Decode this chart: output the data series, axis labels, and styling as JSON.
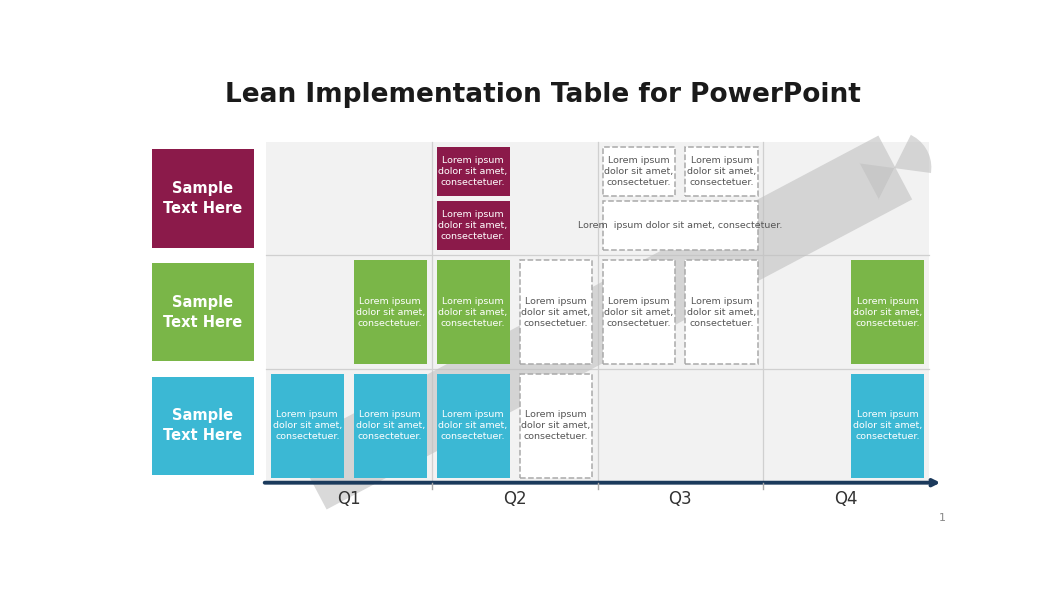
{
  "title": "Lean Implementation Table for PowerPoint",
  "title_fontsize": 19,
  "background_color": "#ffffff",
  "crimson": "#8B1A4A",
  "green": "#7AB648",
  "blue": "#3BB8D4",
  "axis_color": "#1B3A5C",
  "arrow_gray": "#c0c0c0",
  "grid_bg": "#f2f2f2",
  "grid_line": "#d0d0d0",
  "dashed_color": "#aaaaaa",
  "cell_text_dark": "#555555",
  "cell_text": "Lorem ipsum\ndolor sit amet,\nconsectetuer.",
  "cell_text_wide": "Lorem  ipsum dolor sit amet, consectetuer.",
  "quarters": [
    "Q1",
    "Q2",
    "Q3",
    "Q4"
  ],
  "row_labels": [
    "Sample\nText Here",
    "Sample\nText Here",
    "Sample\nText Here"
  ],
  "page_num": "1"
}
